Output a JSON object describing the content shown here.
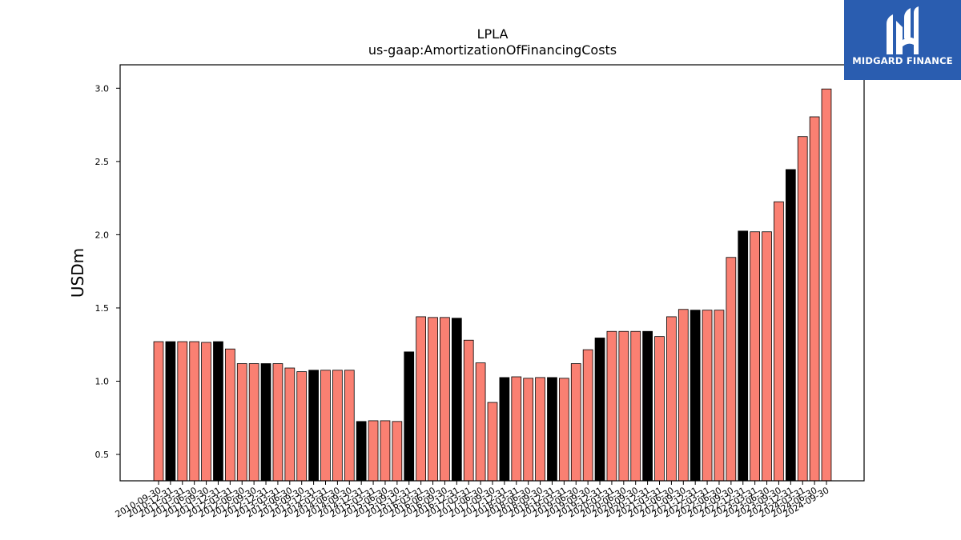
{
  "chart_data": {
    "type": "bar",
    "title": "LPLA",
    "subtitle": "us-gaap:AmortizationOfFinancingCosts",
    "xlabel": "",
    "ylabel": "USDm",
    "ylim": [
      0.32,
      3.16
    ],
    "yticks": [
      0.5,
      1.0,
      1.5,
      2.0,
      2.5,
      3.0
    ],
    "ytick_labels": [
      "0.5",
      "1.0",
      "1.5",
      "2.0",
      "2.5",
      "3.0"
    ],
    "grid": false,
    "legend": "none",
    "colors": {
      "quarterly": "#fa8072",
      "annual": "#000000",
      "edge": "#000000"
    },
    "categories": [
      "2010-09-30",
      "2010-12-31",
      "2011-03-31",
      "2011-06-30",
      "2011-09-30",
      "2011-12-31",
      "2012-03-31",
      "2012-06-30",
      "2012-09-30",
      "2012-12-31",
      "2013-03-31",
      "2013-06-30",
      "2013-09-30",
      "2013-12-31",
      "2014-03-31",
      "2014-06-30",
      "2014-09-30",
      "2014-12-31",
      "2015-03-31",
      "2015-06-30",
      "2015-09-30",
      "2015-12-31",
      "2016-03-31",
      "2016-06-30",
      "2016-09-30",
      "2016-12-31",
      "2017-03-31",
      "2017-06-30",
      "2017-09-30",
      "2017-12-31",
      "2018-03-31",
      "2018-06-30",
      "2018-09-30",
      "2018-12-31",
      "2019-03-31",
      "2019-06-30",
      "2019-09-30",
      "2019-12-31",
      "2020-03-31",
      "2020-06-30",
      "2020-09-30",
      "2020-12-31",
      "2021-03-31",
      "2021-06-30",
      "2021-09-30",
      "2021-12-31",
      "2022-03-31",
      "2022-06-30",
      "2022-09-30",
      "2022-12-31",
      "2023-03-31",
      "2023-06-30",
      "2023-09-30",
      "2023-12-31",
      "2024-03-31",
      "2024-06-30",
      "2024-09-30"
    ],
    "values": [
      1.27,
      1.27,
      1.27,
      1.27,
      1.265,
      1.27,
      1.22,
      1.12,
      1.12,
      1.12,
      1.12,
      1.09,
      1.065,
      1.075,
      1.075,
      1.075,
      1.075,
      0.725,
      0.73,
      0.73,
      0.725,
      1.2,
      1.44,
      1.435,
      1.435,
      1.43,
      1.28,
      1.125,
      0.855,
      1.025,
      1.03,
      1.02,
      1.025,
      1.025,
      1.02,
      1.12,
      1.215,
      1.295,
      1.34,
      1.34,
      1.34,
      1.34,
      1.305,
      1.44,
      1.49,
      1.485,
      1.485,
      1.485,
      1.845,
      2.025,
      2.02,
      2.02,
      2.225,
      2.445,
      2.67,
      2.805,
      2.995
    ],
    "annual": [
      false,
      true,
      false,
      false,
      false,
      true,
      false,
      false,
      false,
      true,
      false,
      false,
      false,
      true,
      false,
      false,
      false,
      true,
      false,
      false,
      false,
      true,
      false,
      false,
      false,
      true,
      false,
      false,
      false,
      true,
      false,
      false,
      false,
      true,
      false,
      false,
      false,
      true,
      false,
      false,
      false,
      true,
      false,
      false,
      false,
      true,
      false,
      false,
      false,
      true,
      false,
      false,
      false,
      true,
      false,
      false,
      false
    ]
  },
  "logo": {
    "name": "MIDGARD FINANCE",
    "icon": "midgard-logo-icon"
  }
}
